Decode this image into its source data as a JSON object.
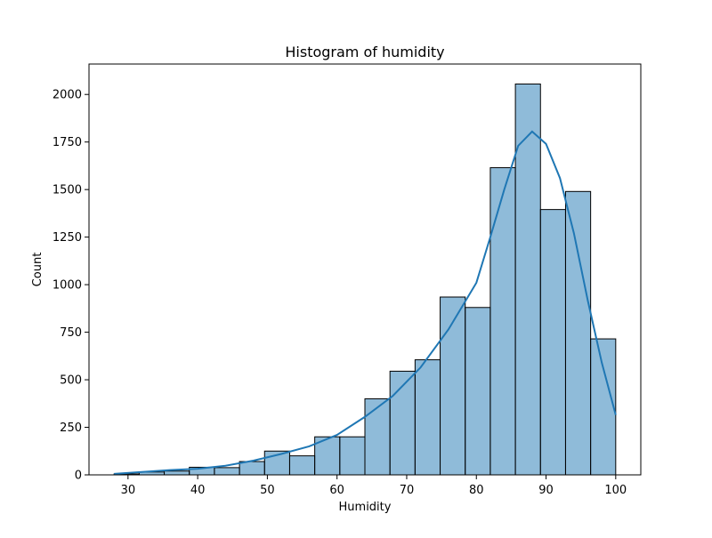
{
  "chart_data": {
    "type": "bar",
    "title": "Histogram of humidity",
    "xlabel": "Humidity",
    "ylabel": "Count",
    "xlim": [
      24.4,
      103.6
    ],
    "ylim": [
      0,
      2160
    ],
    "xticks": [
      30,
      40,
      50,
      60,
      70,
      80,
      90,
      100
    ],
    "yticks": [
      0,
      250,
      500,
      750,
      1000,
      1250,
      1500,
      1750,
      2000
    ],
    "grid": false,
    "legend": "none",
    "bin_edges": [
      28,
      31.6,
      35.2,
      38.8,
      42.4,
      46,
      49.6,
      53.2,
      56.8,
      60.4,
      64,
      67.6,
      71.2,
      74.8,
      78.4,
      82,
      85.6,
      89.2,
      92.8,
      96.4,
      100
    ],
    "values": [
      5,
      15,
      20,
      40,
      38,
      70,
      125,
      100,
      200,
      200,
      400,
      545,
      605,
      935,
      880,
      1615,
      2055,
      1395,
      1490,
      715
    ],
    "kde": {
      "x": [
        28,
        32,
        36,
        40,
        44,
        48,
        52,
        56,
        60,
        64,
        68,
        72,
        76,
        80,
        82,
        84,
        86,
        88,
        90,
        92,
        94,
        96,
        98,
        100
      ],
      "y": [
        5,
        15,
        25,
        32,
        48,
        75,
        110,
        150,
        210,
        305,
        415,
        565,
        765,
        1010,
        1250,
        1500,
        1730,
        1805,
        1740,
        1560,
        1270,
        915,
        590,
        315
      ]
    },
    "colors": {
      "bar_fill": "#1f77b4",
      "bar_alpha": 0.5,
      "bar_edge": "#000000",
      "kde_line": "#1f77b4"
    }
  }
}
